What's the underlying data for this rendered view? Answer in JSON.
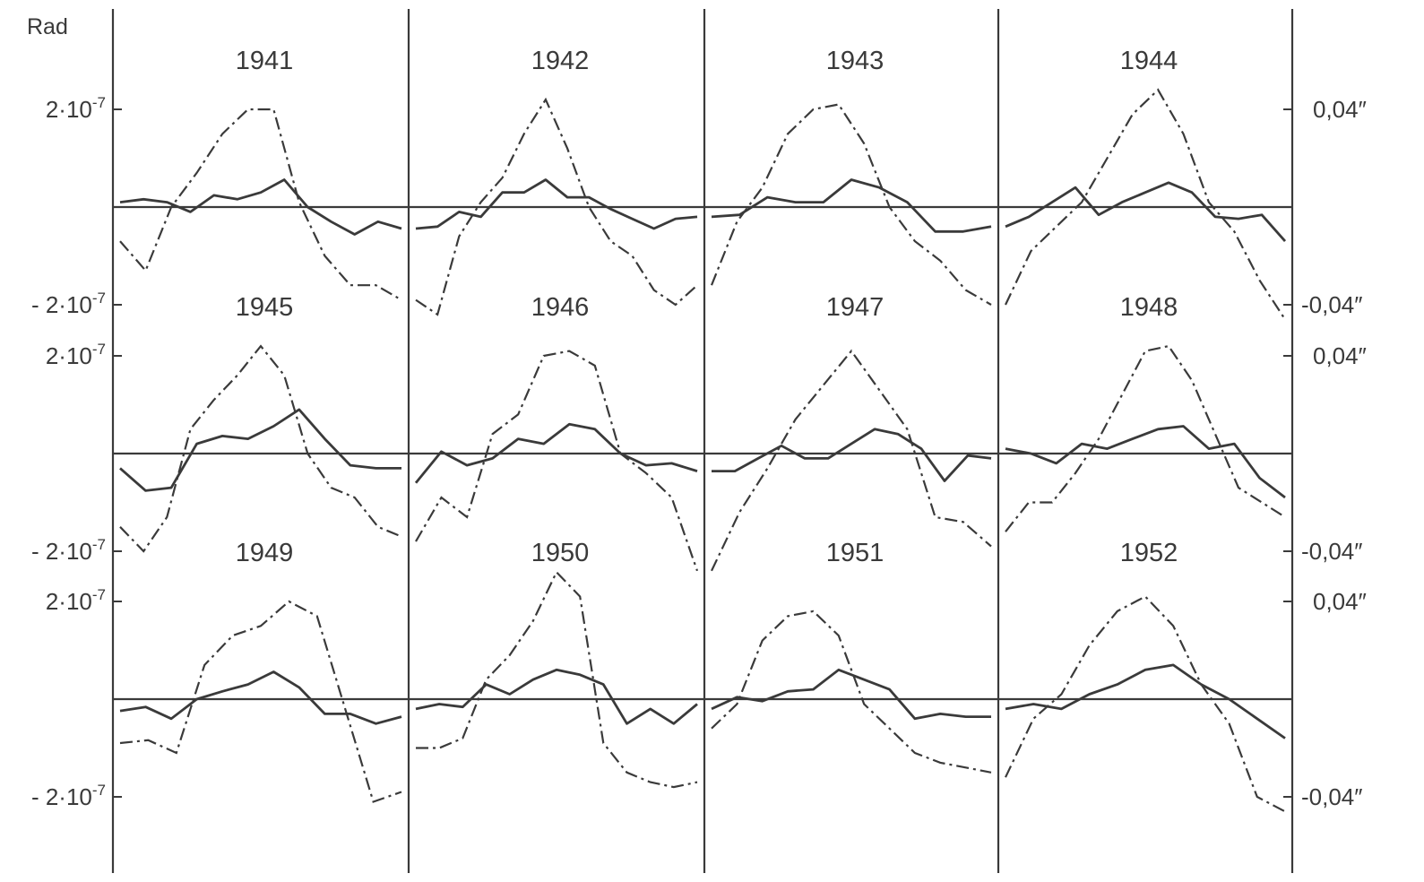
{
  "chart_data": {
    "type": "line",
    "left_axis_unit": "Rad",
    "left_tick_labels": {
      "top": "2·10",
      "bottom": "- 2·10",
      "exponent": "-7"
    },
    "right_tick_labels": {
      "top": "0,04″",
      "bottom": "-0,04″"
    },
    "left_range": [
      -2e-07,
      2e-07
    ],
    "right_range": [
      -0.04,
      0.04
    ],
    "grid": false,
    "legend": "none",
    "line_styles": {
      "solid": "solid",
      "dashed": "dash-dot"
    },
    "rows": [
      {
        "years": [
          "1941",
          "1942",
          "1943",
          "1944"
        ]
      },
      {
        "years": [
          "1945",
          "1946",
          "1947",
          "1948"
        ]
      },
      {
        "years": [
          "1949",
          "1950",
          "1951",
          "1952"
        ]
      }
    ],
    "panels": [
      {
        "year": "1941",
        "solid": [
          0.05,
          0.08,
          0.05,
          -0.05,
          0.12,
          0.08,
          0.15,
          0.28,
          0.0,
          -0.15,
          -0.28,
          -0.15,
          -0.22
        ],
        "dashed": [
          -0.35,
          -0.65,
          0.0,
          0.35,
          0.75,
          1.0,
          1.0,
          0.05,
          -0.5,
          -0.8,
          -0.8,
          -0.95
        ]
      },
      {
        "year": "1942",
        "solid": [
          -0.22,
          -0.2,
          -0.05,
          -0.1,
          0.15,
          0.15,
          0.28,
          0.1,
          0.1,
          -0.02,
          -0.12,
          -0.22,
          -0.12,
          -0.1
        ],
        "dashed": [
          -0.95,
          -1.1,
          -0.3,
          0.05,
          0.3,
          0.75,
          1.1,
          0.6,
          0.0,
          -0.35,
          -0.5,
          -0.85,
          -1.0,
          -0.8
        ]
      },
      {
        "year": "1943",
        "solid": [
          -0.1,
          -0.08,
          0.1,
          0.05,
          0.05,
          0.28,
          0.2,
          0.05,
          -0.25,
          -0.25,
          -0.2
        ],
        "dashed": [
          -0.8,
          -0.15,
          0.2,
          0.75,
          1.0,
          1.05,
          0.65,
          0.0,
          -0.35,
          -0.55,
          -0.85,
          -1.0
        ]
      },
      {
        "year": "1944",
        "solid": [
          -0.2,
          -0.1,
          0.05,
          0.2,
          -0.08,
          0.05,
          0.15,
          0.25,
          0.15,
          -0.1,
          -0.12,
          -0.08,
          -0.35
        ],
        "dashed": [
          -1.0,
          -0.45,
          -0.2,
          0.05,
          0.5,
          0.95,
          1.2,
          0.75,
          0.05,
          -0.25,
          -0.75,
          -1.15
        ]
      },
      {
        "year": "1945",
        "solid": [
          -0.15,
          -0.38,
          -0.35,
          0.1,
          0.18,
          0.15,
          0.28,
          0.45,
          0.15,
          -0.12,
          -0.15,
          -0.15
        ],
        "dashed": [
          -0.75,
          -1.0,
          -0.65,
          0.25,
          0.55,
          0.8,
          1.1,
          0.8,
          0.0,
          -0.35,
          -0.45,
          -0.75,
          -0.85
        ]
      },
      {
        "year": "1946",
        "solid": [
          -0.3,
          0.02,
          -0.12,
          -0.05,
          0.15,
          0.1,
          0.3,
          0.25,
          0.0,
          -0.12,
          -0.1,
          -0.18
        ],
        "dashed": [
          -0.9,
          -0.45,
          -0.65,
          0.2,
          0.4,
          1.0,
          1.05,
          0.9,
          0.0,
          -0.2,
          -0.45,
          -1.2
        ]
      },
      {
        "year": "1947",
        "solid": [
          -0.18,
          -0.18,
          -0.05,
          0.08,
          -0.05,
          -0.05,
          0.1,
          0.25,
          0.2,
          0.05,
          -0.28,
          -0.02,
          -0.05
        ],
        "dashed": [
          -1.2,
          -0.6,
          -0.15,
          0.35,
          0.7,
          1.05,
          0.65,
          0.25,
          -0.65,
          -0.7,
          -0.95
        ]
      },
      {
        "year": "1948",
        "solid": [
          0.05,
          0.0,
          -0.1,
          0.1,
          0.05,
          0.15,
          0.25,
          0.28,
          0.05,
          0.1,
          -0.25,
          -0.45
        ],
        "dashed": [
          -0.8,
          -0.5,
          -0.5,
          -0.2,
          0.15,
          0.6,
          1.05,
          1.1,
          0.75,
          0.2,
          -0.35,
          -0.5,
          -0.65
        ]
      },
      {
        "year": "1949",
        "solid": [
          -0.12,
          -0.08,
          -0.2,
          0.0,
          0.08,
          0.15,
          0.28,
          0.12,
          -0.15,
          -0.15,
          -0.25,
          -0.18
        ],
        "dashed": [
          -0.45,
          -0.42,
          -0.55,
          0.35,
          0.65,
          0.75,
          1.0,
          0.85,
          -0.1,
          -1.05,
          -0.95
        ]
      },
      {
        "year": "1950",
        "solid": [
          -0.1,
          -0.05,
          -0.08,
          0.15,
          0.05,
          0.2,
          0.3,
          0.25,
          0.15,
          -0.25,
          -0.1,
          -0.25,
          -0.05
        ],
        "dashed": [
          -0.5,
          -0.5,
          -0.4,
          0.2,
          0.45,
          0.8,
          1.3,
          1.05,
          -0.45,
          -0.75,
          -0.85,
          -0.9,
          -0.85
        ]
      },
      {
        "year": "1951",
        "solid": [
          -0.1,
          0.02,
          -0.02,
          0.08,
          0.1,
          0.3,
          0.2,
          0.1,
          -0.2,
          -0.15,
          -0.18,
          -0.18
        ],
        "dashed": [
          -0.3,
          -0.05,
          0.6,
          0.85,
          0.9,
          0.65,
          -0.05,
          -0.3,
          -0.55,
          -0.65,
          -0.7,
          -0.75
        ]
      },
      {
        "year": "1952",
        "solid": [
          -0.1,
          -0.05,
          -0.1,
          0.05,
          0.15,
          0.3,
          0.35,
          0.15,
          0.0,
          -0.2,
          -0.4
        ],
        "dashed": [
          -0.8,
          -0.2,
          0.05,
          0.55,
          0.9,
          1.05,
          0.75,
          0.15,
          -0.25,
          -1.0,
          -1.15
        ]
      }
    ]
  }
}
